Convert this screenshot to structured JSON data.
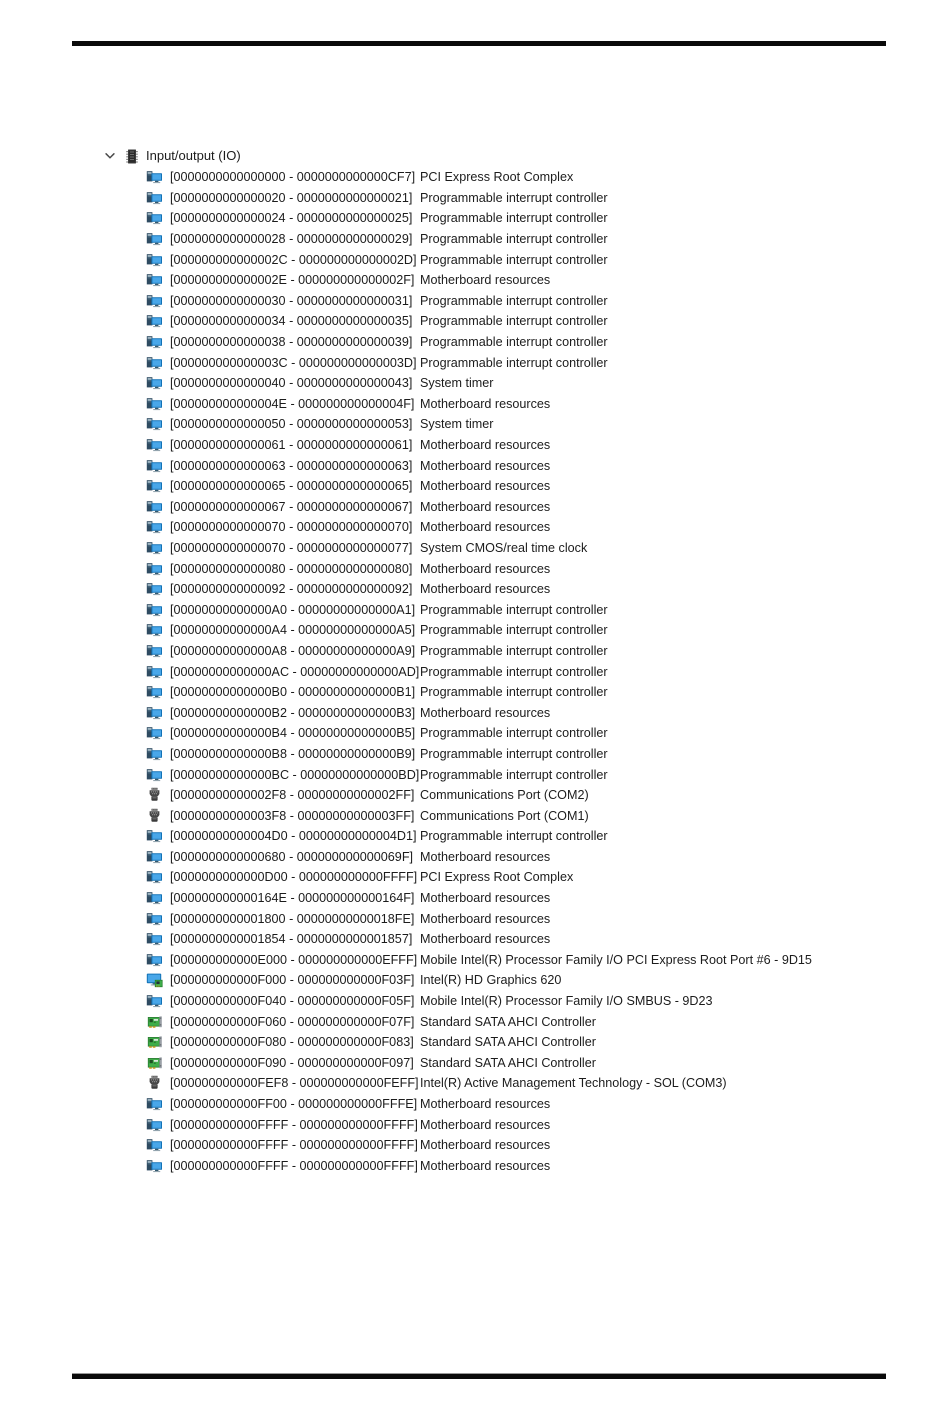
{
  "page": {
    "background": "#ffffff",
    "rule_color": "#0a0a0a"
  },
  "colors": {
    "text": "#1c1c1c",
    "monitor_blue": "#1272b6",
    "screen_blue": "#49a7e9",
    "tower_navy": "#2e4b61",
    "card_green": "#3fae49",
    "connector_gray": "#4a4a4a",
    "chip_dark": "#3d3d3d"
  },
  "tree": {
    "root_label": "Input/output (IO)",
    "root_icon": "memory-chip",
    "expanded": true,
    "rows": [
      {
        "range": "[0000000000000000 - 0000000000000CF7]",
        "name": "PCI Express Root Complex",
        "icon": "system-device"
      },
      {
        "range": "[0000000000000020 - 0000000000000021]",
        "name": "Programmable interrupt controller",
        "icon": "system-device"
      },
      {
        "range": "[0000000000000024 - 0000000000000025]",
        "name": "Programmable interrupt controller",
        "icon": "system-device"
      },
      {
        "range": "[0000000000000028 - 0000000000000029]",
        "name": "Programmable interrupt controller",
        "icon": "system-device"
      },
      {
        "range": "[000000000000002C - 000000000000002D]",
        "name": "Programmable interrupt controller",
        "icon": "system-device"
      },
      {
        "range": "[000000000000002E - 000000000000002F]",
        "name": "Motherboard resources",
        "icon": "system-device"
      },
      {
        "range": "[0000000000000030 - 0000000000000031]",
        "name": "Programmable interrupt controller",
        "icon": "system-device"
      },
      {
        "range": "[0000000000000034 - 0000000000000035]",
        "name": "Programmable interrupt controller",
        "icon": "system-device"
      },
      {
        "range": "[0000000000000038 - 0000000000000039]",
        "name": "Programmable interrupt controller",
        "icon": "system-device"
      },
      {
        "range": "[000000000000003C - 000000000000003D]",
        "name": "Programmable interrupt controller",
        "icon": "system-device"
      },
      {
        "range": "[0000000000000040 - 0000000000000043]",
        "name": "System timer",
        "icon": "system-device"
      },
      {
        "range": "[000000000000004E - 000000000000004F]",
        "name": "Motherboard resources",
        "icon": "system-device"
      },
      {
        "range": "[0000000000000050 - 0000000000000053]",
        "name": "System timer",
        "icon": "system-device"
      },
      {
        "range": "[0000000000000061 - 0000000000000061]",
        "name": "Motherboard resources",
        "icon": "system-device"
      },
      {
        "range": "[0000000000000063 - 0000000000000063]",
        "name": "Motherboard resources",
        "icon": "system-device"
      },
      {
        "range": "[0000000000000065 - 0000000000000065]",
        "name": "Motherboard resources",
        "icon": "system-device"
      },
      {
        "range": "[0000000000000067 - 0000000000000067]",
        "name": "Motherboard resources",
        "icon": "system-device"
      },
      {
        "range": "[0000000000000070 - 0000000000000070]",
        "name": "Motherboard resources",
        "icon": "system-device"
      },
      {
        "range": "[0000000000000070 - 0000000000000077]",
        "name": "System CMOS/real time clock",
        "icon": "system-device"
      },
      {
        "range": "[0000000000000080 - 0000000000000080]",
        "name": "Motherboard resources",
        "icon": "system-device"
      },
      {
        "range": "[0000000000000092 - 0000000000000092]",
        "name": "Motherboard resources",
        "icon": "system-device"
      },
      {
        "range": "[00000000000000A0 - 00000000000000A1]",
        "name": "Programmable interrupt controller",
        "icon": "system-device"
      },
      {
        "range": "[00000000000000A4 - 00000000000000A5]",
        "name": "Programmable interrupt controller",
        "icon": "system-device"
      },
      {
        "range": "[00000000000000A8 - 00000000000000A9]",
        "name": "Programmable interrupt controller",
        "icon": "system-device"
      },
      {
        "range": "[00000000000000AC - 00000000000000AD]",
        "name": "Programmable interrupt controller",
        "icon": "system-device"
      },
      {
        "range": "[00000000000000B0 - 00000000000000B1]",
        "name": "Programmable interrupt controller",
        "icon": "system-device"
      },
      {
        "range": "[00000000000000B2 - 00000000000000B3]",
        "name": "Motherboard resources",
        "icon": "system-device"
      },
      {
        "range": "[00000000000000B4 - 00000000000000B5]",
        "name": "Programmable interrupt controller",
        "icon": "system-device"
      },
      {
        "range": "[00000000000000B8 - 00000000000000B9]",
        "name": "Programmable interrupt controller",
        "icon": "system-device"
      },
      {
        "range": "[00000000000000BC - 00000000000000BD]",
        "name": "Programmable interrupt controller",
        "icon": "system-device"
      },
      {
        "range": "[00000000000002F8 - 00000000000002FF]",
        "name": "Communications Port (COM2)",
        "icon": "serial-port"
      },
      {
        "range": "[00000000000003F8 - 00000000000003FF]",
        "name": "Communications Port (COM1)",
        "icon": "serial-port"
      },
      {
        "range": "[00000000000004D0 - 00000000000004D1]",
        "name": "Programmable interrupt controller",
        "icon": "system-device"
      },
      {
        "range": "[0000000000000680 - 000000000000069F]",
        "name": "Motherboard resources",
        "icon": "system-device"
      },
      {
        "range": "[0000000000000D00 - 000000000000FFFF]",
        "name": "PCI Express Root Complex",
        "icon": "system-device"
      },
      {
        "range": "[000000000000164E - 000000000000164F]",
        "name": "Motherboard resources",
        "icon": "system-device"
      },
      {
        "range": "[0000000000001800 - 00000000000018FE]",
        "name": "Motherboard resources",
        "icon": "system-device"
      },
      {
        "range": "[0000000000001854 - 0000000000001857]",
        "name": "Motherboard resources",
        "icon": "system-device"
      },
      {
        "range": "[000000000000E000 - 000000000000EFFF]",
        "name": "Mobile Intel(R) Processor Family I/O PCI Express Root Port #6 - 9D15",
        "icon": "system-device"
      },
      {
        "range": "[000000000000F000 - 000000000000F03F]",
        "name": "Intel(R) HD Graphics 620",
        "icon": "display-adapter"
      },
      {
        "range": "[000000000000F040 - 000000000000F05F]",
        "name": "Mobile Intel(R) Processor Family I/O SMBUS - 9D23",
        "icon": "system-device"
      },
      {
        "range": "[000000000000F060 - 000000000000F07F]",
        "name": "Standard SATA AHCI Controller",
        "icon": "storage-controller"
      },
      {
        "range": "[000000000000F080 - 000000000000F083]",
        "name": "Standard SATA AHCI Controller",
        "icon": "storage-controller"
      },
      {
        "range": "[000000000000F090 - 000000000000F097]",
        "name": "Standard SATA AHCI Controller",
        "icon": "storage-controller"
      },
      {
        "range": "[000000000000FEF8 - 000000000000FEFF]",
        "name": "Intel(R) Active Management Technology - SOL (COM3)",
        "icon": "serial-port"
      },
      {
        "range": "[000000000000FF00 - 000000000000FFFE]",
        "name": "Motherboard resources",
        "icon": "system-device"
      },
      {
        "range": "[000000000000FFFF - 000000000000FFFF]",
        "name": "Motherboard resources",
        "icon": "system-device"
      },
      {
        "range": "[000000000000FFFF - 000000000000FFFF]",
        "name": "Motherboard resources",
        "icon": "system-device"
      },
      {
        "range": "[000000000000FFFF - 000000000000FFFF]",
        "name": "Motherboard resources",
        "icon": "system-device"
      }
    ]
  }
}
